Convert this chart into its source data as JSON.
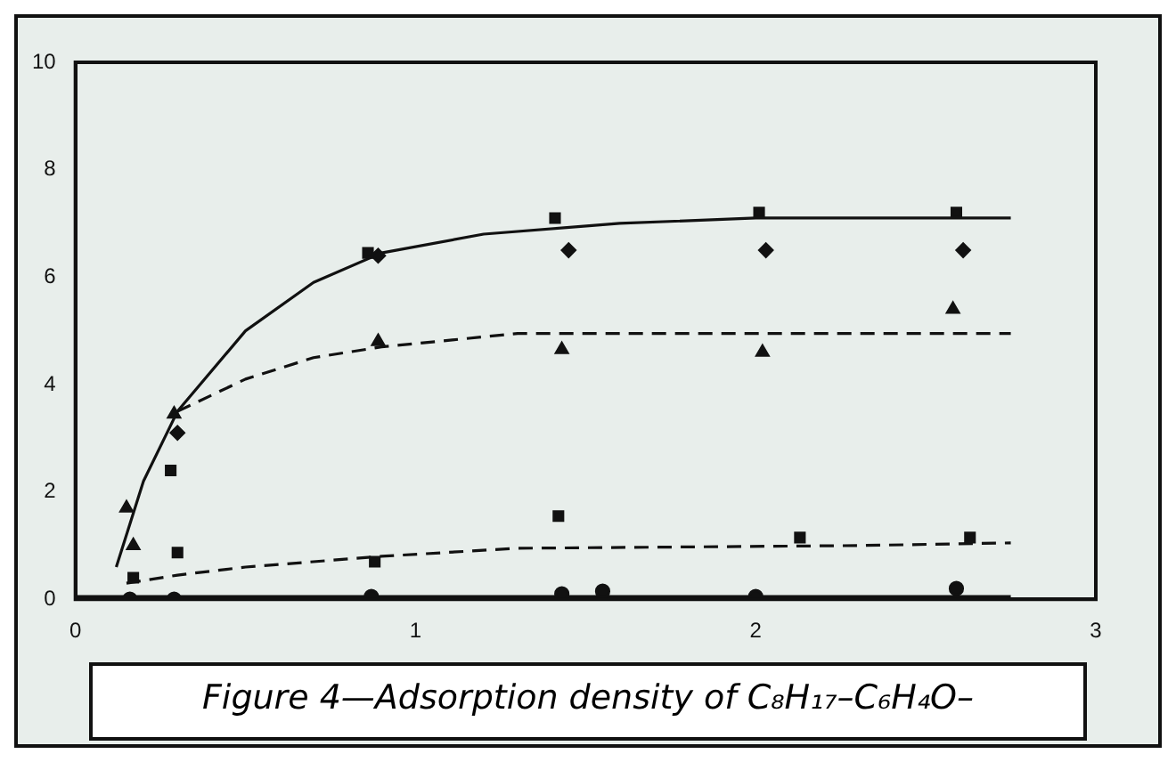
{
  "chart_data": {
    "type": "scatter",
    "subtitle": "Figure 4—Adsorption density of C₈H₁₇–C₆H₄O–",
    "xlim": [
      0,
      3
    ],
    "ylim": [
      0,
      10
    ],
    "xticks": [
      0,
      1,
      2,
      3
    ],
    "yticks": [
      0,
      2,
      4,
      6,
      8,
      10
    ],
    "grid": false,
    "legend": false,
    "series": [
      {
        "type": "scatter",
        "marker": "square",
        "color": "#111111",
        "x": [
          0.28,
          0.86,
          1.41,
          2.01,
          2.59
        ],
        "values": [
          2.4,
          6.45,
          7.1,
          7.2,
          7.2
        ]
      },
      {
        "type": "scatter",
        "marker": "diamond",
        "color": "#111111",
        "x": [
          0.3,
          0.89,
          1.45,
          2.03,
          2.61
        ],
        "values": [
          3.1,
          6.4,
          6.5,
          6.5,
          6.5
        ]
      },
      {
        "type": "scatter",
        "marker": "triangle",
        "color": "#111111",
        "x": [
          0.15,
          0.17,
          0.29,
          0.89,
          1.43,
          2.02,
          2.58
        ],
        "values": [
          1.7,
          1.0,
          3.45,
          4.8,
          4.65,
          4.6,
          5.4
        ]
      },
      {
        "type": "scatter",
        "marker": "square",
        "color": "#111111",
        "x": [
          0.17,
          0.3,
          0.88,
          1.42,
          2.13,
          2.63
        ],
        "values": [
          0.4,
          0.87,
          0.7,
          1.55,
          1.15,
          1.15
        ]
      },
      {
        "type": "scatter",
        "marker": "circle",
        "color": "#111111",
        "x": [
          0.16,
          0.29,
          0.87,
          1.43,
          1.55,
          2.0,
          2.59
        ],
        "values": [
          0.0,
          0.0,
          0.05,
          0.1,
          0.15,
          0.05,
          0.2
        ]
      },
      {
        "type": "line",
        "marker": "none",
        "line_style": "solid",
        "color": "#111111",
        "x": [
          0.12,
          0.2,
          0.3,
          0.5,
          0.7,
          0.9,
          1.2,
          1.6,
          2.0,
          2.75
        ],
        "values": [
          0.6,
          2.2,
          3.5,
          5.0,
          5.9,
          6.45,
          6.8,
          7.0,
          7.1,
          7.1
        ]
      },
      {
        "type": "line",
        "marker": "none",
        "line_style": "dashed",
        "color": "#111111",
        "x": [
          0.3,
          0.5,
          0.7,
          0.9,
          1.3,
          2.0,
          2.75
        ],
        "values": [
          3.5,
          4.1,
          4.5,
          4.7,
          4.95,
          4.95,
          4.95
        ]
      },
      {
        "type": "line",
        "marker": "none",
        "line_style": "dashed",
        "color": "#111111",
        "x": [
          0.15,
          0.3,
          0.5,
          0.9,
          1.3,
          2.3,
          2.75
        ],
        "values": [
          0.3,
          0.45,
          0.6,
          0.8,
          0.95,
          1.0,
          1.05
        ]
      },
      {
        "type": "line",
        "marker": "none",
        "line_style": "solid",
        "color": "#111111",
        "x": [
          0.0,
          2.75
        ],
        "values": [
          0.05,
          0.05
        ]
      }
    ]
  }
}
